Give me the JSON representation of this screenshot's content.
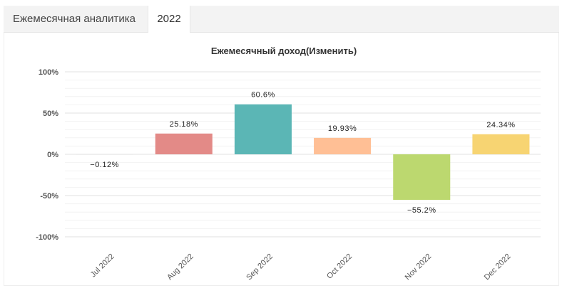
{
  "tabs": [
    {
      "label": "Ежемесячная аналитика",
      "active": false
    },
    {
      "label": "2022",
      "active": true
    }
  ],
  "chart_data": {
    "type": "bar",
    "title": "Ежемесячный доход(Изменить)",
    "categories": [
      "Jul 2022",
      "Aug 2022",
      "Sep 2022",
      "Oct 2022",
      "Nov 2022",
      "Dec 2022"
    ],
    "values": [
      -0.12,
      25.18,
      60.6,
      19.93,
      -55.2,
      24.34
    ],
    "data_labels": [
      "−0.12%",
      "25.18%",
      "60.6%",
      "19.93%",
      "−55.2%",
      "24.34%"
    ],
    "colors": [
      "#e3e3e3",
      "#e38a87",
      "#5bb6b5",
      "#ffbf95",
      "#bcd86f",
      "#f7d472"
    ],
    "ylim": [
      -100,
      100
    ],
    "yticks": [
      100,
      50,
      0,
      -50,
      -100
    ],
    "ytick_labels": [
      "100%",
      "50%",
      "0%",
      "-50%",
      "-100%"
    ],
    "xlabel": "",
    "ylabel": "",
    "grid": true,
    "legend": "none"
  }
}
